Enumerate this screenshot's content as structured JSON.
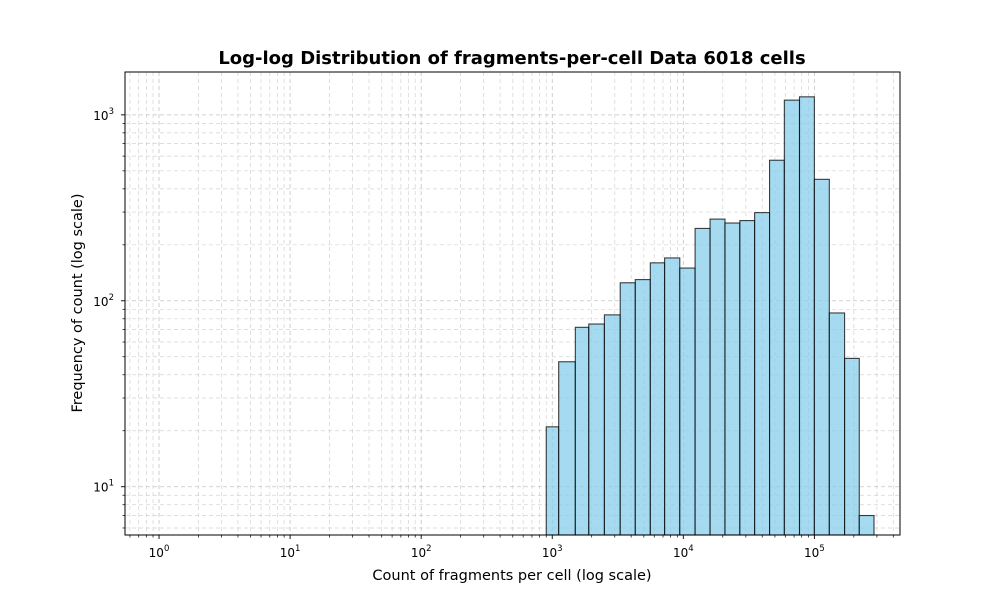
{
  "chart_data": {
    "type": "bar",
    "title": "Log-log Distribution of fragments-per-cell Data 6018 cells",
    "xlabel": "Count of fragments per cell (log scale)",
    "ylabel": "Frequency of count (log scale)",
    "xscale": "log",
    "yscale": "log",
    "xlim": [
      0.55,
      450000
    ],
    "ylim": [
      5.5,
      1700
    ],
    "grid": true,
    "bar_color": "#87CEEB",
    "edge_color": "#000000",
    "x_ticks": [
      {
        "base": "10",
        "exp": "0",
        "value": 1
      },
      {
        "base": "10",
        "exp": "1",
        "value": 10
      },
      {
        "base": "10",
        "exp": "2",
        "value": 100
      },
      {
        "base": "10",
        "exp": "3",
        "value": 1000
      },
      {
        "base": "10",
        "exp": "4",
        "value": 10000
      },
      {
        "base": "10",
        "exp": "5",
        "value": 100000
      }
    ],
    "y_ticks": [
      {
        "base": "10",
        "exp": "1",
        "value": 10
      },
      {
        "base": "10",
        "exp": "2",
        "value": 100
      },
      {
        "base": "10",
        "exp": "3",
        "value": 1000
      }
    ],
    "bins": [
      {
        "x0": 900,
        "x1": 1120,
        "count": 21
      },
      {
        "x0": 1120,
        "x1": 1500,
        "count": 47
      },
      {
        "x0": 1500,
        "x1": 1900,
        "count": 72
      },
      {
        "x0": 1900,
        "x1": 2500,
        "count": 75
      },
      {
        "x0": 2500,
        "x1": 3300,
        "count": 84
      },
      {
        "x0": 3300,
        "x1": 4300,
        "count": 125
      },
      {
        "x0": 4300,
        "x1": 5600,
        "count": 130
      },
      {
        "x0": 5600,
        "x1": 7200,
        "count": 160
      },
      {
        "x0": 7200,
        "x1": 9400,
        "count": 170
      },
      {
        "x0": 9400,
        "x1": 12300,
        "count": 150
      },
      {
        "x0": 12300,
        "x1": 16000,
        "count": 245
      },
      {
        "x0": 16000,
        "x1": 20800,
        "count": 275
      },
      {
        "x0": 20800,
        "x1": 27000,
        "count": 262
      },
      {
        "x0": 27000,
        "x1": 35000,
        "count": 270
      },
      {
        "x0": 35000,
        "x1": 45500,
        "count": 298
      },
      {
        "x0": 45500,
        "x1": 59000,
        "count": 570
      },
      {
        "x0": 59000,
        "x1": 77000,
        "count": 1200
      },
      {
        "x0": 77000,
        "x1": 100000,
        "count": 1250
      },
      {
        "x0": 100000,
        "x1": 130000,
        "count": 450
      },
      {
        "x0": 130000,
        "x1": 170000,
        "count": 86
      },
      {
        "x0": 170000,
        "x1": 220000,
        "count": 49
      },
      {
        "x0": 220000,
        "x1": 285000,
        "count": 7
      }
    ]
  }
}
